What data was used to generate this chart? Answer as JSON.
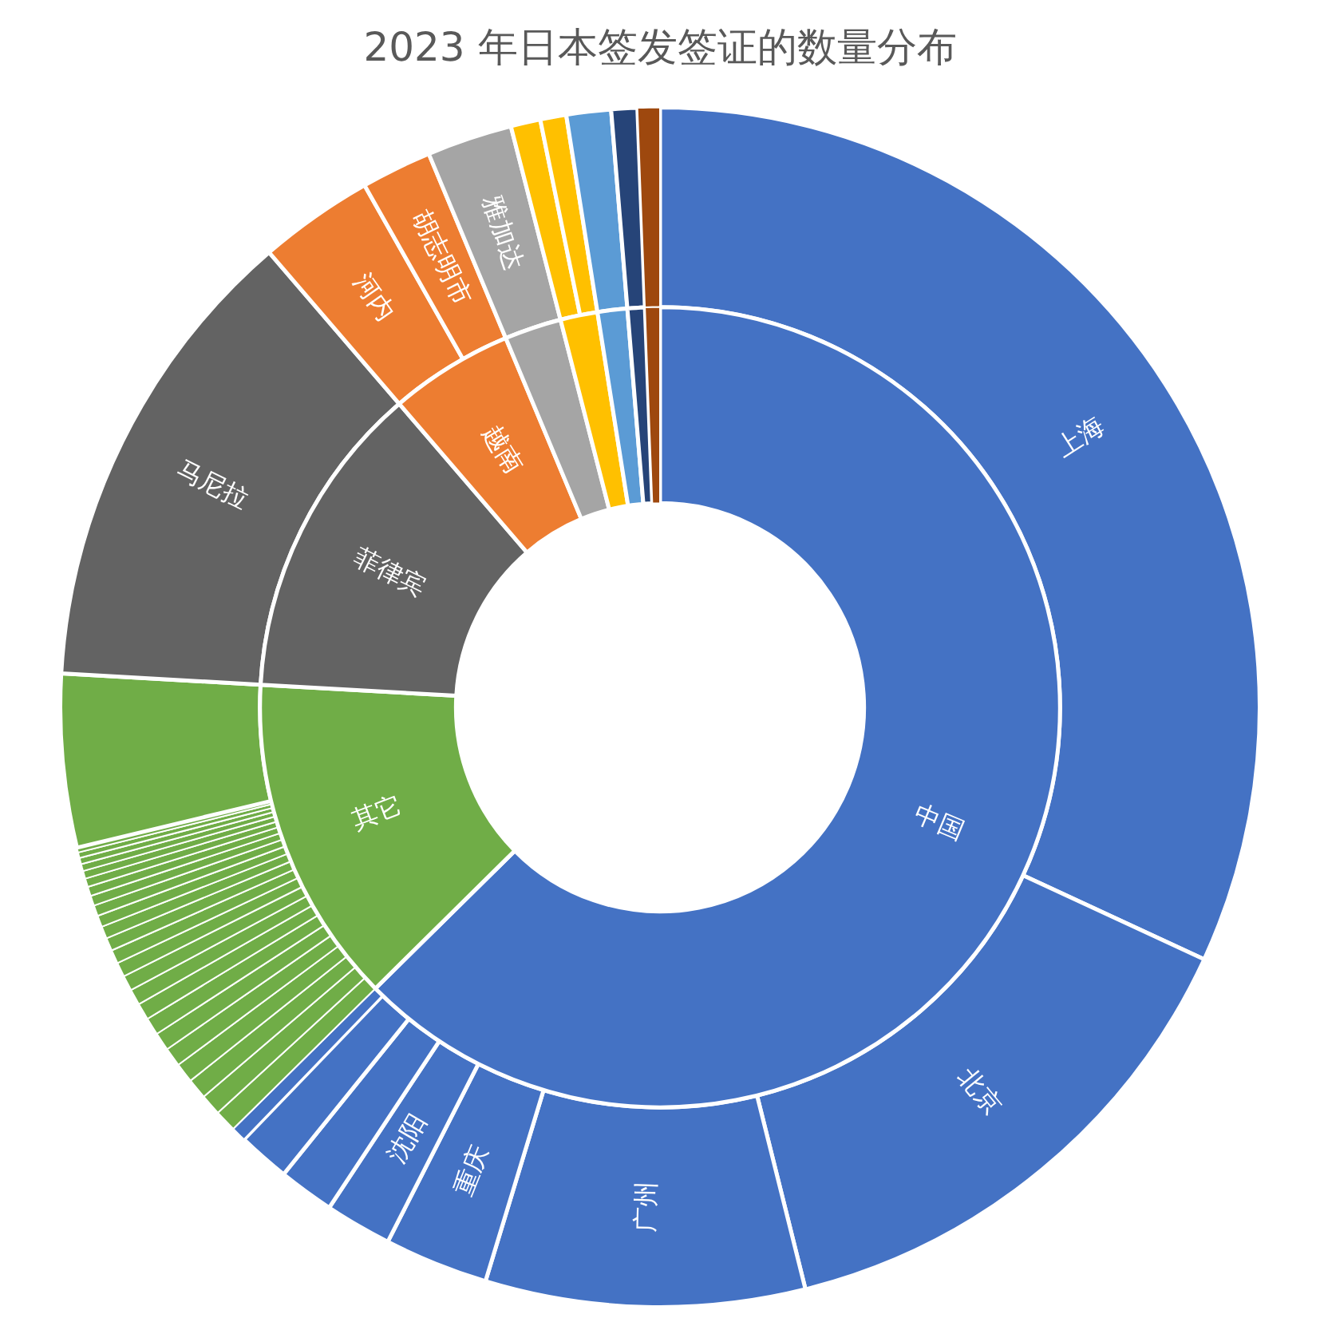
{
  "chart_data": [
    {
      "type": "donut",
      "title": "2023 年日本签发签证的数量分布",
      "legend": false,
      "categories": [
        "上海",
        "北京",
        "广州",
        "重庆",
        "沈阳",
        null,
        null,
        null,
        null,
        null,
        null,
        null,
        null,
        null,
        null,
        null,
        null,
        null,
        null,
        null,
        null,
        null,
        null,
        null,
        null,
        null,
        null,
        null,
        null,
        null,
        null,
        null,
        null,
        "马尼拉",
        "河内",
        "胡志明市",
        "雅加达",
        null,
        null,
        null,
        null,
        null
      ],
      "values": [
        31.9,
        14.2,
        8.6,
        2.8,
        1.8,
        1.5,
        1.4,
        0.4,
        0.59,
        0.57,
        0.55,
        0.53,
        0.51,
        0.49,
        0.47,
        0.45,
        0.43,
        0.41,
        0.39,
        0.37,
        0.35,
        0.33,
        0.31,
        0.29,
        0.27,
        0.25,
        0.23,
        0.21,
        0.19,
        0.17,
        0.15,
        0.13,
        4.66,
        12.8,
        3.1,
        1.9,
        2.3,
        0.8,
        0.7,
        1.2,
        0.7,
        0.6
      ],
      "colors": [
        "#4472c4",
        "#4472c4",
        "#4472c4",
        "#4472c4",
        "#4472c4",
        "#4472c4",
        "#4472c4",
        "#4472c4",
        "#70ad47",
        "#70ad47",
        "#70ad47",
        "#70ad47",
        "#70ad47",
        "#70ad47",
        "#70ad47",
        "#70ad47",
        "#70ad47",
        "#70ad47",
        "#70ad47",
        "#70ad47",
        "#70ad47",
        "#70ad47",
        "#70ad47",
        "#70ad47",
        "#70ad47",
        "#70ad47",
        "#70ad47",
        "#70ad47",
        "#70ad47",
        "#70ad47",
        "#70ad47",
        "#70ad47",
        "#70ad47",
        "#636363",
        "#ed7d31",
        "#ed7d31",
        "#a5a5a5",
        "#ffc000",
        "#ffc000",
        "#5b9bd5",
        "#264478",
        "#9e480e"
      ]
    },
    {
      "type": "donut",
      "legend": false,
      "categories": [
        "中国",
        "其它",
        "菲律宾",
        "越南",
        null,
        null,
        null,
        null,
        null
      ],
      "values": [
        62.6,
        13.3,
        12.8,
        5.0,
        2.3,
        1.5,
        1.2,
        0.7,
        0.6
      ],
      "colors": [
        "#4472c4",
        "#70ad47",
        "#636363",
        "#ed7d31",
        "#a5a5a5",
        "#ffc000",
        "#5b9bd5",
        "#264478",
        "#9e480e"
      ]
    }
  ]
}
